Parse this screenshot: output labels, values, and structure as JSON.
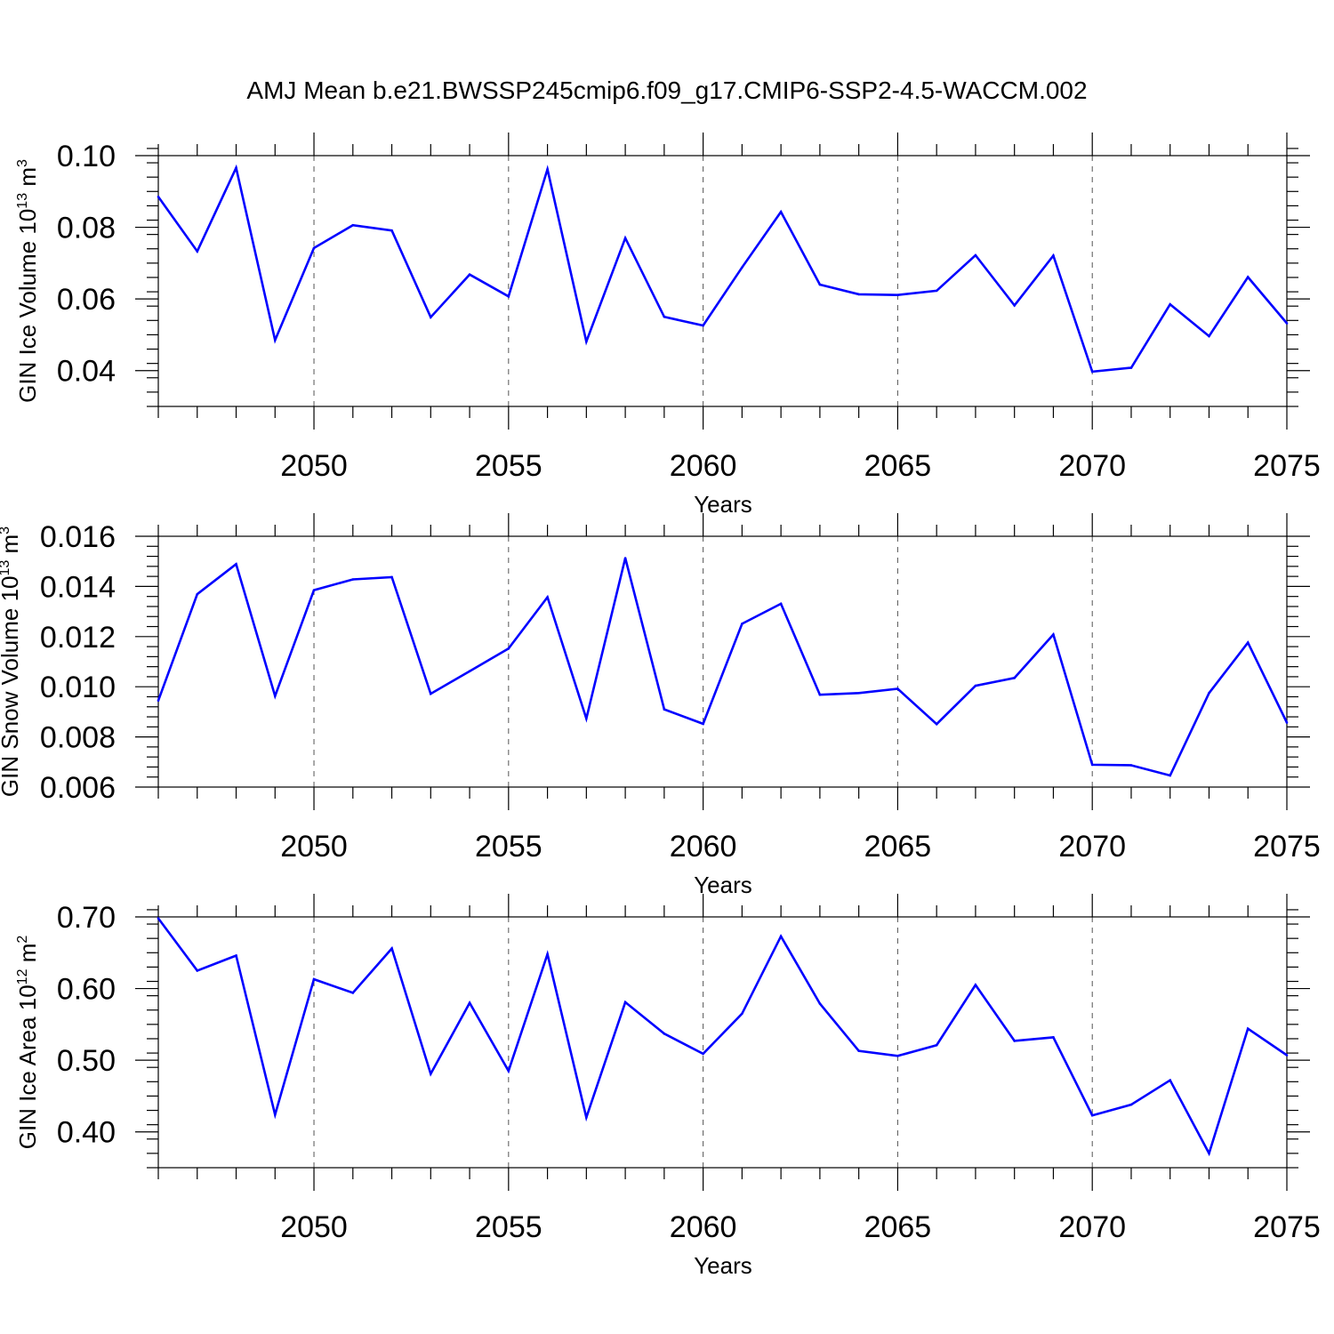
{
  "title": "AMJ Mean b.e21.BWSSP245cmip6.f09_g17.CMIP6-SSP2-4.5-WACCM.002",
  "line_color": "#0000ff",
  "chart_data": [
    {
      "type": "line",
      "ylabel_main": "GIN Ice Volume 10",
      "ylabel_sup": "13",
      "ylabel_unit": " m",
      "ylabel_unit_sup": "3",
      "xlabel": "Years",
      "xlim": [
        2046,
        2075
      ],
      "ylim": [
        0.03,
        0.1
      ],
      "yticks": [
        0.04,
        0.06,
        0.08,
        0.1
      ],
      "ytick_labels": [
        "0.04",
        "0.06",
        "0.08",
        "0.10"
      ],
      "xticks": [
        2050,
        2055,
        2060,
        2065,
        2070,
        2075
      ],
      "xtick_labels": [
        "2050",
        "2055",
        "2060",
        "2065",
        "2070",
        "2075"
      ],
      "grid": "vertical dashed at major x ticks",
      "x": [
        2046,
        2047,
        2048,
        2049,
        2050,
        2051,
        2052,
        2053,
        2054,
        2055,
        2056,
        2057,
        2058,
        2059,
        2060,
        2061,
        2062,
        2063,
        2064,
        2065,
        2066,
        2067,
        2068,
        2069,
        2070,
        2071,
        2072,
        2073,
        2074,
        2075
      ],
      "y": [
        0.0885,
        0.0733,
        0.0966,
        0.0485,
        0.0742,
        0.0806,
        0.0791,
        0.0549,
        0.0668,
        0.0607,
        0.0962,
        0.0481,
        0.077,
        0.055,
        0.0526,
        0.0688,
        0.0843,
        0.064,
        0.0613,
        0.0611,
        0.0623,
        0.0722,
        0.0582,
        0.0721,
        0.0397,
        0.0408,
        0.0585,
        0.0496,
        0.0661,
        0.0532
      ]
    },
    {
      "type": "line",
      "ylabel_main": "GIN Snow Volume 10",
      "ylabel_sup": "13",
      "ylabel_unit": " m",
      "ylabel_unit_sup": "3",
      "xlabel": "Years",
      "xlim": [
        2046,
        2075
      ],
      "ylim": [
        0.006,
        0.016
      ],
      "yticks": [
        0.006,
        0.008,
        0.01,
        0.012,
        0.014,
        0.016
      ],
      "ytick_labels": [
        "0.006",
        "0.008",
        "0.010",
        "0.012",
        "0.014",
        "0.016"
      ],
      "xticks": [
        2050,
        2055,
        2060,
        2065,
        2070,
        2075
      ],
      "xtick_labels": [
        "2050",
        "2055",
        "2060",
        "2065",
        "2070",
        "2075"
      ],
      "grid": "vertical dashed at major x ticks",
      "x": [
        2046,
        2047,
        2048,
        2049,
        2050,
        2051,
        2052,
        2053,
        2054,
        2055,
        2056,
        2057,
        2058,
        2059,
        2060,
        2061,
        2062,
        2063,
        2064,
        2065,
        2066,
        2067,
        2068,
        2069,
        2070,
        2071,
        2072,
        2073,
        2074,
        2075
      ],
      "y": [
        0.00945,
        0.01369,
        0.01489,
        0.00963,
        0.01385,
        0.01428,
        0.01437,
        0.00972,
        0.01062,
        0.01152,
        0.01357,
        0.00873,
        0.01513,
        0.0091,
        0.00852,
        0.01251,
        0.01331,
        0.00968,
        0.00975,
        0.00992,
        0.00851,
        0.01004,
        0.01035,
        0.01208,
        0.00689,
        0.00687,
        0.00646,
        0.00975,
        0.01176,
        0.00857
      ]
    },
    {
      "type": "line",
      "ylabel_main": "GIN Ice Area 10",
      "ylabel_sup": "12",
      "ylabel_unit": " m",
      "ylabel_unit_sup": "2",
      "xlabel": "Years",
      "xlim": [
        2046,
        2075
      ],
      "ylim": [
        0.35,
        0.7
      ],
      "yticks": [
        0.4,
        0.5,
        0.6,
        0.7
      ],
      "ytick_labels": [
        "0.40",
        "0.50",
        "0.60",
        "0.70"
      ],
      "xticks": [
        2050,
        2055,
        2060,
        2065,
        2070,
        2075
      ],
      "xtick_labels": [
        "2050",
        "2055",
        "2060",
        "2065",
        "2070",
        "2075"
      ],
      "grid": "vertical dashed at major x ticks",
      "x": [
        2046,
        2047,
        2048,
        2049,
        2050,
        2051,
        2052,
        2053,
        2054,
        2055,
        2056,
        2057,
        2058,
        2059,
        2060,
        2061,
        2062,
        2063,
        2064,
        2065,
        2066,
        2067,
        2068,
        2069,
        2070,
        2071,
        2072,
        2073,
        2074,
        2075
      ],
      "y": [
        0.698,
        0.625,
        0.646,
        0.424,
        0.613,
        0.594,
        0.656,
        0.481,
        0.58,
        0.485,
        0.648,
        0.42,
        0.581,
        0.537,
        0.509,
        0.565,
        0.673,
        0.579,
        0.513,
        0.506,
        0.521,
        0.605,
        0.527,
        0.532,
        0.423,
        0.438,
        0.472,
        0.37,
        0.544,
        0.507
      ]
    }
  ]
}
